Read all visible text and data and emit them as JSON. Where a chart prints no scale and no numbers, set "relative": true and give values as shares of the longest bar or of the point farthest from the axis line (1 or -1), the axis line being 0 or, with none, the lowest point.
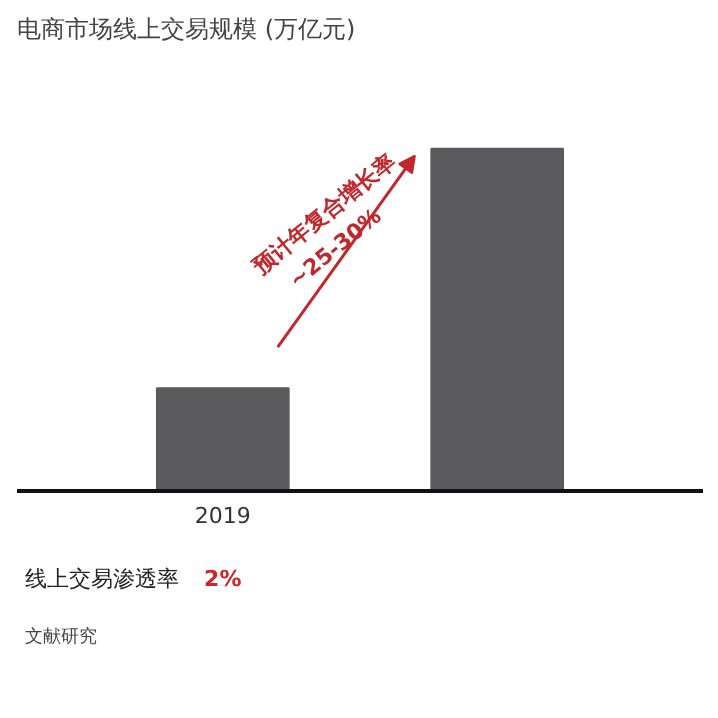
{
  "chart_data": {
    "type": "bar",
    "title": "电商市场线上交易规模 (万亿元)",
    "relative": true,
    "categories": [
      "2019",
      null
    ],
    "values": [
      0.3,
      1
    ],
    "color": "#5a595b",
    "annotations": [
      "预计年复合增长率\n~25-30%",
      "线上交易渗透率",
      "2%",
      "文献研究"
    ]
  }
}
